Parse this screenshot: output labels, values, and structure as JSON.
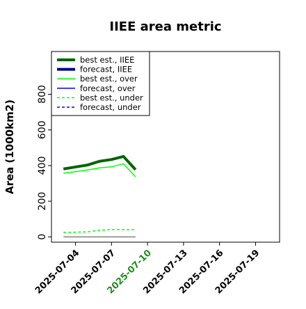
{
  "chart_data": {
    "type": "line",
    "title": "IIEE area metric",
    "xlabel": "",
    "ylabel": "Area (1000km2)",
    "xlim": [
      "2025-07-02",
      "2025-07-21"
    ],
    "ylim": [
      -30,
      1040
    ],
    "y_ticks": [
      0,
      200,
      400,
      600,
      800
    ],
    "x_ticks": [
      "2025-07-04",
      "2025-07-07",
      "2025-07-10",
      "2025-07-13",
      "2025-07-16",
      "2025-07-19"
    ],
    "highlight_tick": "2025-07-10",
    "highlight_color": "#228b22",
    "legend_position": "upper left",
    "grid": false,
    "series": [
      {
        "name": "best est., IIEE",
        "color": "#006400",
        "dash": "solid",
        "width": 4,
        "x": [
          "2025-07-03",
          "2025-07-04",
          "2025-07-05",
          "2025-07-06",
          "2025-07-07",
          "2025-07-08",
          "2025-07-09"
        ],
        "y": [
          381,
          392,
          403,
          424,
          434,
          451,
          377
        ]
      },
      {
        "name": "forecast, IIEE",
        "color": "#00008b",
        "dash": "solid",
        "width": 4,
        "x": [],
        "y": []
      },
      {
        "name": "best est., over",
        "color": "#00ff00",
        "dash": "solid",
        "width": 1.5,
        "x": [
          "2025-07-03",
          "2025-07-04",
          "2025-07-05",
          "2025-07-06",
          "2025-07-07",
          "2025-07-08",
          "2025-07-09"
        ],
        "y": [
          357,
          366,
          375,
          387,
          393,
          410,
          337
        ]
      },
      {
        "name": "forecast, over",
        "color": "#0000ff",
        "dash": "solid",
        "width": 1.5,
        "x": [],
        "y": []
      },
      {
        "name": "best est., under",
        "color": "#00ff00",
        "dash": "dashed",
        "width": 1.5,
        "x": [
          "2025-07-03",
          "2025-07-04",
          "2025-07-05",
          "2025-07-06",
          "2025-07-07",
          "2025-07-08",
          "2025-07-09"
        ],
        "y": [
          25,
          26,
          28,
          37,
          41,
          41,
          40
        ]
      },
      {
        "name": "forecast, under",
        "color": "#0000ff",
        "dash": "dashed",
        "width": 1.5,
        "x": [],
        "y": []
      }
    ],
    "reference_line": {
      "color": "#808080",
      "x": [
        "2025-07-03",
        "2025-07-09"
      ],
      "y": [
        0,
        0
      ]
    }
  }
}
